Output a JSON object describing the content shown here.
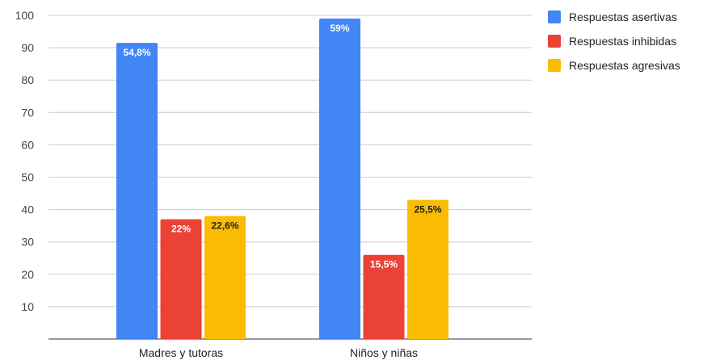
{
  "chart_data": {
    "type": "bar",
    "categories": [
      "Madres y tutoras",
      "Niños y niñas"
    ],
    "series": [
      {
        "name": "Respuestas asertivas",
        "color": "#4285F4",
        "values": [
          91.5,
          99
        ],
        "labels": [
          "54,8%",
          "59%"
        ],
        "label_color": "#ffffff"
      },
      {
        "name": "Respuestas inhibidas",
        "color": "#EA4335",
        "values": [
          37,
          26
        ],
        "labels": [
          "22%",
          "15,5%"
        ],
        "label_color": "#ffffff"
      },
      {
        "name": "Respuestas agresivas",
        "color": "#FBBC04",
        "values": [
          38,
          43
        ],
        "labels": [
          "22,6%",
          "25,5%"
        ],
        "label_color": "#222222"
      }
    ],
    "yticks": [
      10,
      20,
      30,
      40,
      50,
      60,
      70,
      80,
      90,
      100
    ],
    "ylim": [
      0,
      100
    ],
    "grid": true,
    "legend": "top-right"
  }
}
